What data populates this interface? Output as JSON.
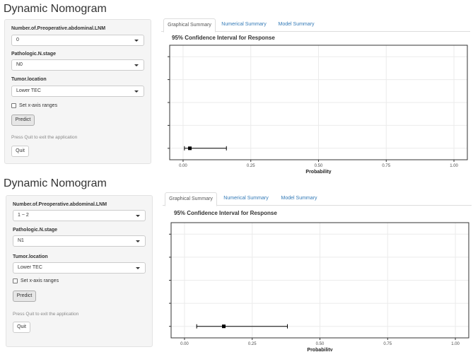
{
  "apps": [
    {
      "title": "Dynamic Nomogram",
      "fields": [
        {
          "label": "Number.of.Preoperative.abdominal.LNM",
          "value": "0"
        },
        {
          "label": "Pathologic.N.stage",
          "value": "N0"
        },
        {
          "label": "Tumor.location",
          "value": "Lower TEC"
        }
      ],
      "checkbox_label": "Set x-axis ranges",
      "predict_label": "Predict",
      "help_text": "Press Quit to exit the application",
      "quit_label": "Quit",
      "tabs": [
        "Graphical Summary",
        "Numerical Summary",
        "Model Summary"
      ],
      "active_tab": "Graphical Summary",
      "chart_data": {
        "type": "scatter",
        "title": "95% Confidence Interval for Response",
        "xlabel": "Probability",
        "ylabel": "",
        "xlim": [
          0,
          1
        ],
        "x_ticks": [
          "0.00",
          "0.25",
          "0.50",
          "0.75",
          "1.00"
        ],
        "grid": true,
        "point": 0.025,
        "ci": [
          0.005,
          0.16
        ]
      }
    },
    {
      "title": "Dynamic Nomogram",
      "fields": [
        {
          "label": "Number.of.Preoperative.abdominal.LNM",
          "value": "1 ~ 2"
        },
        {
          "label": "Pathologic.N.stage",
          "value": "N1"
        },
        {
          "label": "Tumor.location",
          "value": "Lower TEC"
        }
      ],
      "checkbox_label": "Set x-axis ranges",
      "predict_label": "Predict",
      "help_text": "Press Quit to exit the application",
      "quit_label": "Quit",
      "tabs": [
        "Graphical Summary",
        "Numerical Summary",
        "Model Summary"
      ],
      "active_tab": "Graphical Summary",
      "chart_data": {
        "type": "scatter",
        "title": "95% Confidence Interval for Response",
        "xlabel": "Probability",
        "ylabel": "",
        "xlim": [
          0,
          1
        ],
        "x_ticks": [
          "0.00",
          "0.25",
          "0.50",
          "0.75",
          "1.00"
        ],
        "grid": true,
        "point": 0.145,
        "ci": [
          0.045,
          0.38
        ]
      }
    }
  ]
}
